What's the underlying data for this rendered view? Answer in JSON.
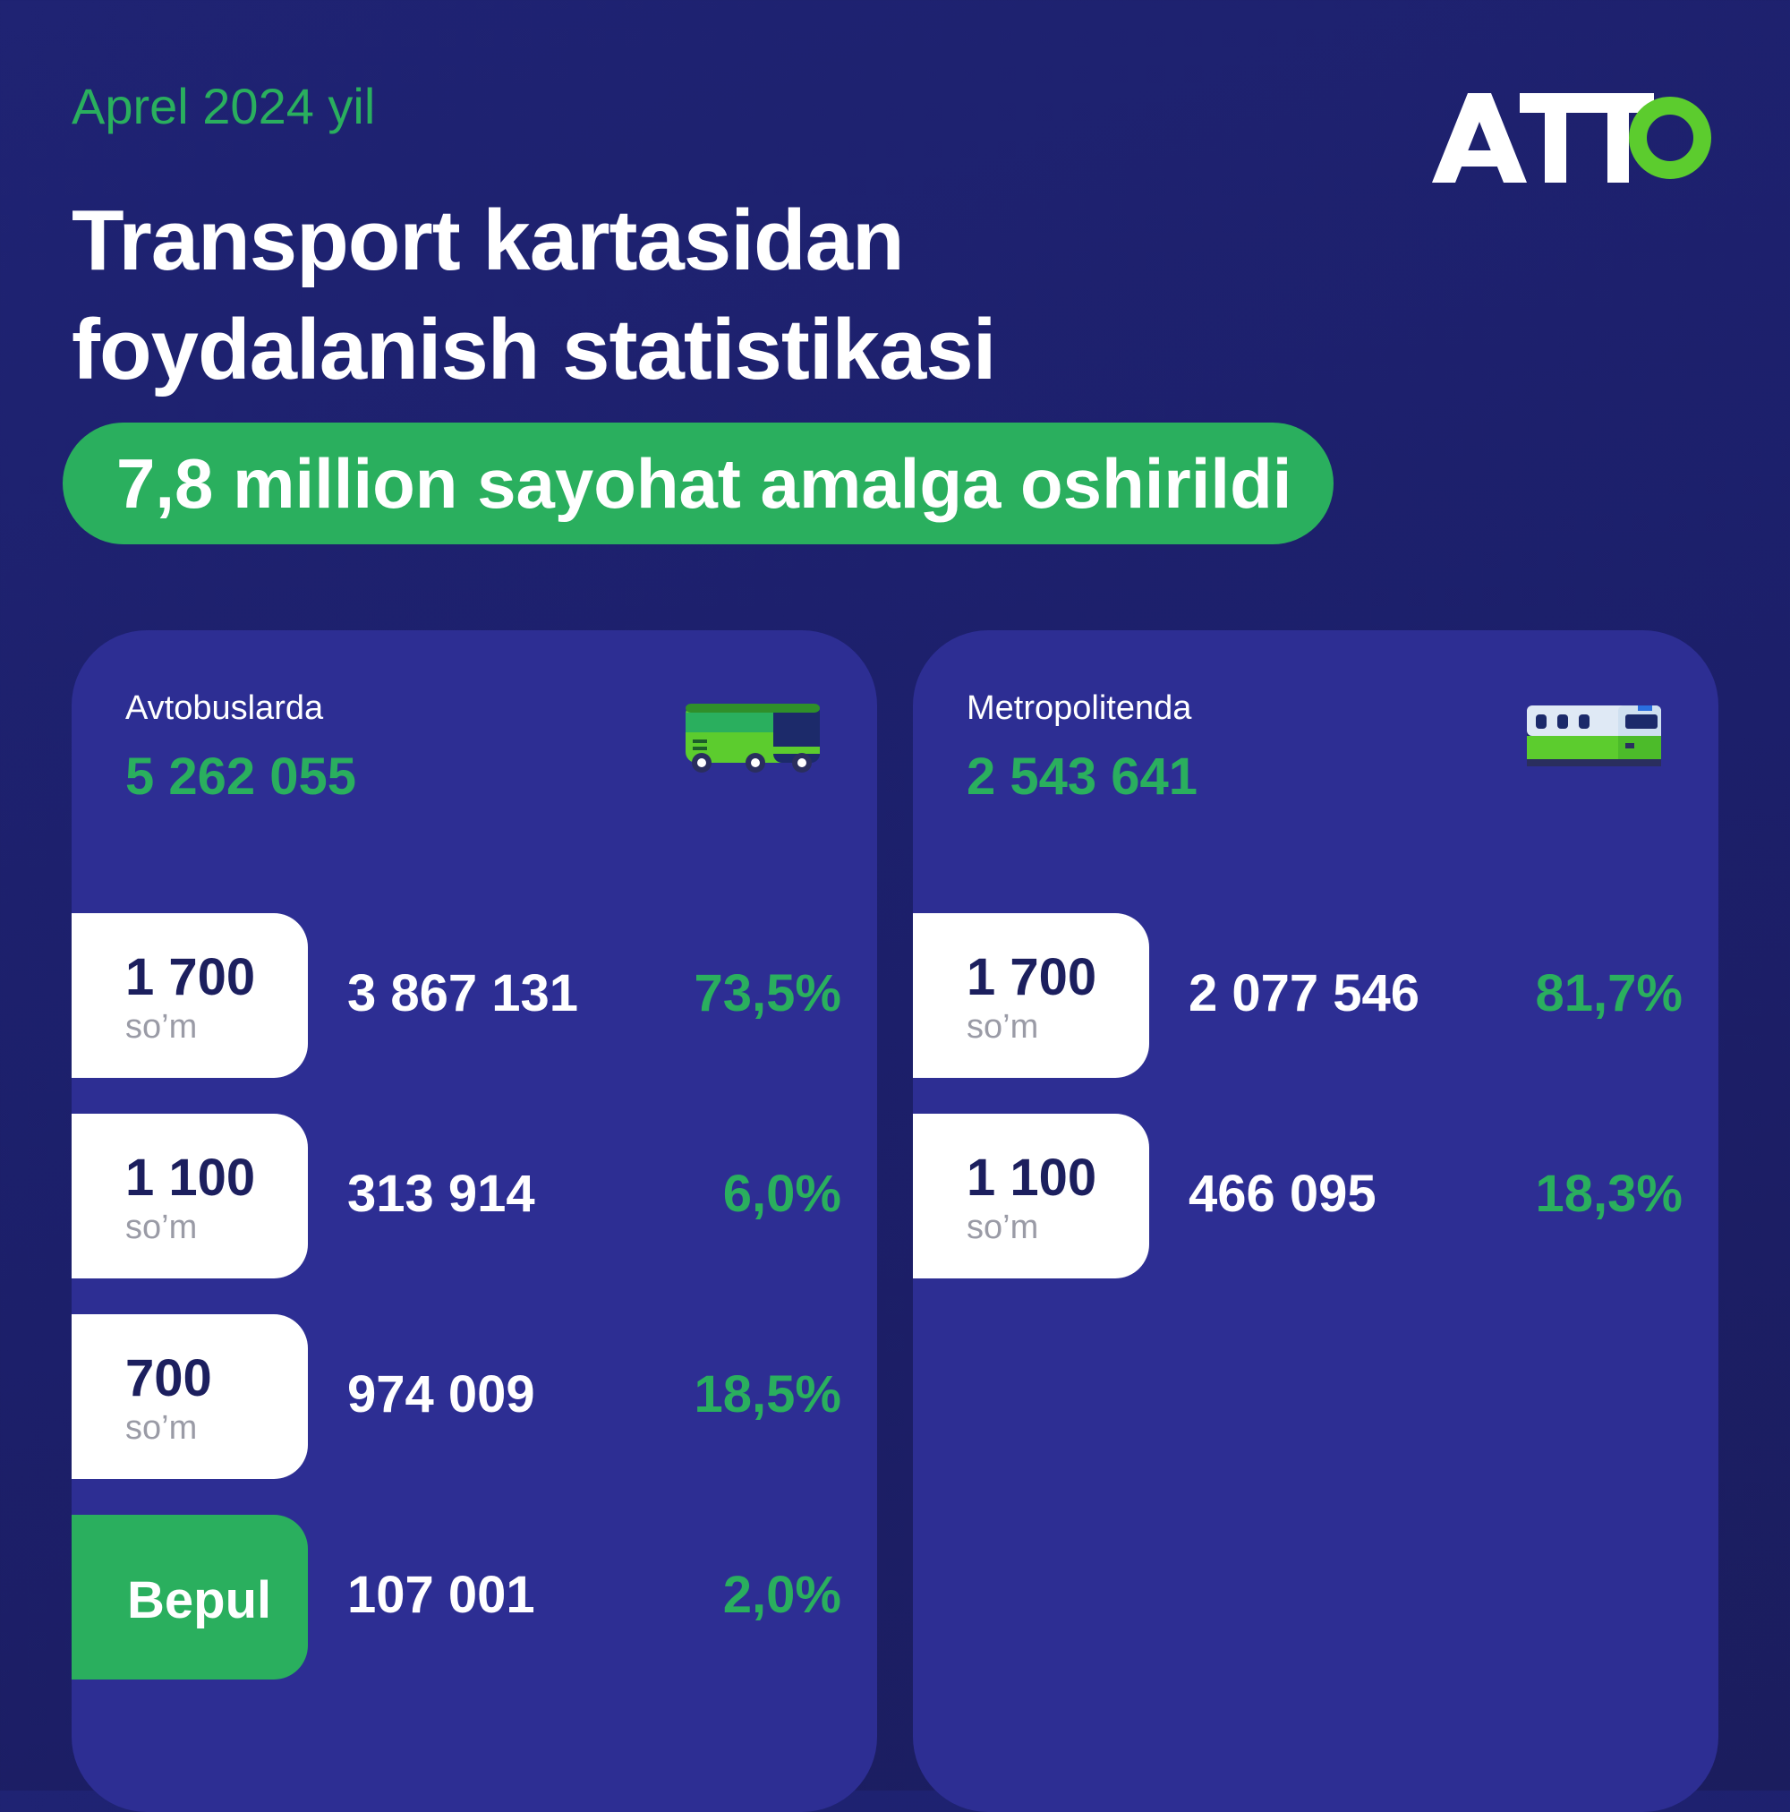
{
  "header": {
    "date": "Aprel 2024 yil",
    "title_line1": "Transport kartasidan",
    "title_line2": "foydalanish statistikasi",
    "headline": "7,8 million sayohat amalga oshirildi",
    "logo_text": "ATTO"
  },
  "colors": {
    "accent": "#2aaf5e",
    "card": "#2d2e93",
    "background": "#1f2373",
    "fare_text": "#1c1f5e"
  },
  "bus": {
    "label": "Avtobuslarda",
    "total": "5 262 055",
    "icon": "bus-icon",
    "rows": [
      {
        "fare": "1 700",
        "unit": "so’m",
        "count": "3 867 131",
        "percent": "73,5%"
      },
      {
        "fare": "1 100",
        "unit": "so’m",
        "count": "313 914",
        "percent": "6,0%"
      },
      {
        "fare": "700",
        "unit": "so’m",
        "count": "974 009",
        "percent": "18,5%"
      },
      {
        "fare_free": "Bepul",
        "count": "107 001",
        "percent": "2,0%"
      }
    ]
  },
  "metro": {
    "label": "Metropolitenda",
    "total": "2 543 641",
    "icon": "metro-train-icon",
    "rows": [
      {
        "fare": "1 700",
        "unit": "so’m",
        "count": "2 077 546",
        "percent": "81,7%"
      },
      {
        "fare": "1 100",
        "unit": "so’m",
        "count": "466 095",
        "percent": "18,3%"
      }
    ]
  }
}
